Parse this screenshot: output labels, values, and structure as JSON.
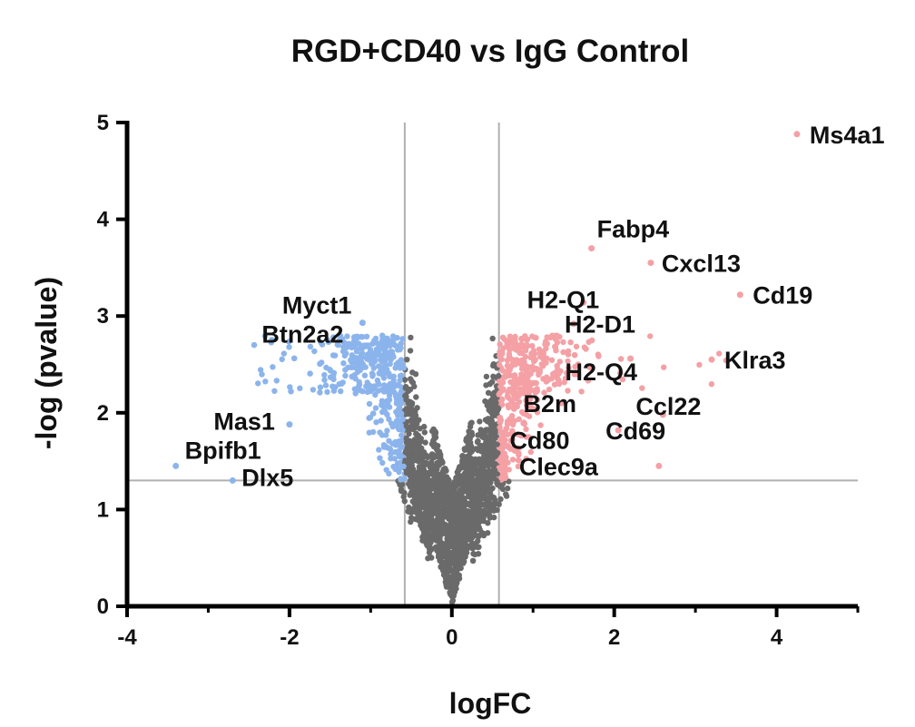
{
  "chart_data": {
    "type": "scatter",
    "title": "RGD+CD40 vs IgG Control",
    "xlabel": "logFC",
    "ylabel": "-log (pvalue)",
    "xlim": [
      -4,
      5
    ],
    "ylim": [
      0,
      5
    ],
    "xticks": [
      -4,
      -2,
      0,
      2,
      4
    ],
    "yticks": [
      0,
      1,
      2,
      3,
      4,
      5
    ],
    "thresholds": {
      "logFC": [
        -0.58,
        0.58
      ],
      "neglog_p": 1.3
    },
    "colors": {
      "up": "#f4a0a5",
      "down": "#8cb4ec",
      "ns": "#6a6a6a",
      "axis": "#000000",
      "threshold_line": "#b0b0b0"
    },
    "labeled_genes": [
      {
        "name": "Ms4a1",
        "x": 4.25,
        "y": 4.88,
        "group": "up"
      },
      {
        "name": "Fabp4",
        "x": 1.72,
        "y": 3.7,
        "group": "up"
      },
      {
        "name": "Cxcl13",
        "x": 2.45,
        "y": 3.55,
        "group": "up"
      },
      {
        "name": "Cd19",
        "x": 3.55,
        "y": 3.22,
        "group": "up"
      },
      {
        "name": "H2-Q1",
        "x": 1.62,
        "y": 3.14,
        "group": "up"
      },
      {
        "name": "H2-D1",
        "x": 1.5,
        "y": 2.92,
        "group": "up"
      },
      {
        "name": "H2-Q4",
        "x": 2.2,
        "y": 2.56,
        "group": "up"
      },
      {
        "name": "Klra3",
        "x": 3.2,
        "y": 2.55,
        "group": "up"
      },
      {
        "name": "B2m",
        "x": 1.35,
        "y": 2.1,
        "group": "up"
      },
      {
        "name": "Ccl22",
        "x": 2.6,
        "y": 1.98,
        "group": "up"
      },
      {
        "name": "Cd69",
        "x": 2.05,
        "y": 1.82,
        "group": "up"
      },
      {
        "name": "Cd80",
        "x": 0.6,
        "y": 1.72,
        "group": "up"
      },
      {
        "name": "Clec9a",
        "x": 2.55,
        "y": 1.45,
        "group": "up"
      },
      {
        "name": "Myct1",
        "x": -1.1,
        "y": 2.93,
        "group": "down"
      },
      {
        "name": "Btn2a2",
        "x": -1.2,
        "y": 2.78,
        "group": "down"
      },
      {
        "name": "Mas1",
        "x": -2.0,
        "y": 1.88,
        "group": "down"
      },
      {
        "name": "Bpifb1",
        "x": -3.4,
        "y": 1.45,
        "group": "down"
      },
      {
        "name": "Dlx5",
        "x": -2.7,
        "y": 1.3,
        "group": "down"
      }
    ]
  }
}
